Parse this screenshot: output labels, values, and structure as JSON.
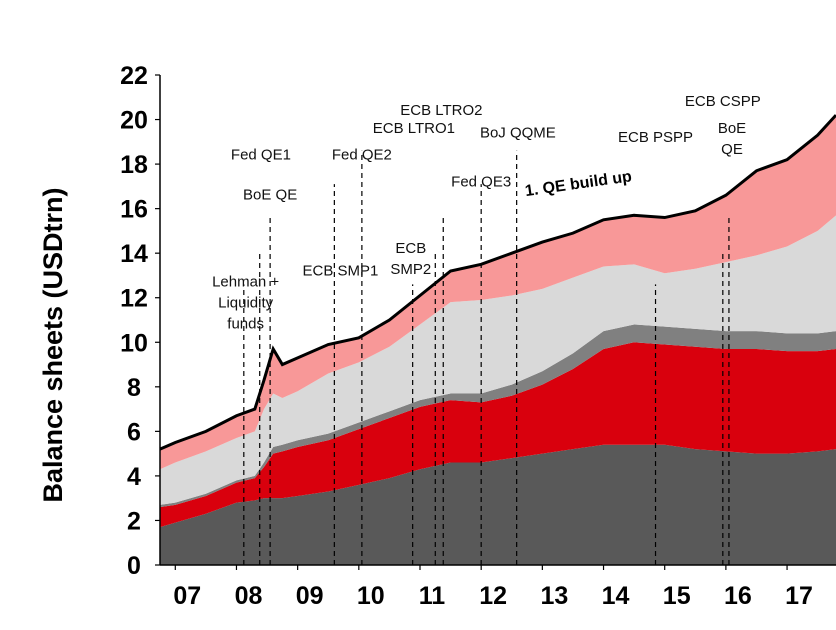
{
  "chart_data": {
    "type": "area",
    "title": "",
    "ylabel": "Balance sheets (USDtrn)",
    "xlabel": "",
    "ylim": [
      0,
      22
    ],
    "yticks": [
      0,
      2,
      4,
      6,
      8,
      10,
      12,
      14,
      16,
      18,
      20,
      22
    ],
    "xticks": [
      {
        "label": "07",
        "x": 2007.0
      },
      {
        "label": "08",
        "x": 2008.0
      },
      {
        "label": "09",
        "x": 2009.0
      },
      {
        "label": "10",
        "x": 2010.0
      },
      {
        "label": "11",
        "x": 2011.0
      },
      {
        "label": "12",
        "x": 2012.0
      },
      {
        "label": "13",
        "x": 2013.0
      },
      {
        "label": "14",
        "x": 2014.0
      },
      {
        "label": "15",
        "x": 2015.0
      },
      {
        "label": "16",
        "x": 2016.0
      },
      {
        "label": "17",
        "x": 2017.0
      }
    ],
    "xlim": [
      2006.75,
      2017.8
    ],
    "grid": false,
    "x": [
      2006.75,
      2007.0,
      2007.5,
      2008.0,
      2008.3,
      2008.45,
      2008.6,
      2008.75,
      2009.0,
      2009.5,
      2010.0,
      2010.5,
      2011.0,
      2011.5,
      2012.0,
      2012.5,
      2013.0,
      2013.5,
      2014.0,
      2014.5,
      2015.0,
      2015.5,
      2016.0,
      2016.5,
      2017.0,
      2017.5,
      2017.8
    ],
    "series": [
      {
        "color": "#595959",
        "values": [
          1.7,
          1.9,
          2.3,
          2.8,
          2.9,
          3.0,
          3.0,
          3.0,
          3.1,
          3.3,
          3.6,
          3.9,
          4.3,
          4.6,
          4.6,
          4.8,
          5.0,
          5.2,
          5.4,
          5.4,
          5.4,
          5.2,
          5.1,
          5.0,
          5.0,
          5.1,
          5.2
        ]
      },
      {
        "color": "#d9000d",
        "values": [
          0.9,
          0.8,
          0.8,
          0.9,
          1.0,
          1.4,
          2.0,
          2.1,
          2.2,
          2.3,
          2.5,
          2.7,
          2.8,
          2.8,
          2.7,
          2.8,
          3.1,
          3.6,
          4.3,
          4.6,
          4.5,
          4.6,
          4.6,
          4.7,
          4.6,
          4.5,
          4.5
        ]
      },
      {
        "color": "#808080",
        "values": [
          0.1,
          0.1,
          0.1,
          0.1,
          0.1,
          0.2,
          0.3,
          0.3,
          0.3,
          0.3,
          0.3,
          0.3,
          0.3,
          0.3,
          0.4,
          0.5,
          0.6,
          0.7,
          0.8,
          0.8,
          0.8,
          0.8,
          0.8,
          0.8,
          0.8,
          0.8,
          0.8
        ]
      },
      {
        "color": "#d9d9d9",
        "values": [
          1.6,
          1.8,
          1.9,
          1.9,
          2.0,
          2.4,
          2.4,
          2.1,
          2.2,
          2.7,
          2.7,
          2.9,
          3.4,
          4.1,
          4.2,
          4.0,
          3.7,
          3.4,
          2.9,
          2.7,
          2.4,
          2.7,
          3.1,
          3.4,
          3.9,
          4.6,
          5.2
        ]
      },
      {
        "color": "#f89898",
        "values": [
          0.9,
          0.9,
          0.9,
          1.0,
          1.0,
          1.3,
          2.0,
          1.5,
          1.5,
          1.3,
          1.1,
          1.2,
          1.3,
          1.4,
          1.6,
          1.9,
          2.1,
          2.0,
          2.1,
          2.2,
          2.5,
          2.6,
          3.0,
          3.8,
          3.9,
          4.3,
          4.5
        ]
      }
    ],
    "annotations": [
      {
        "text": [
          "Lehman +",
          "Liquidity",
          "funds"
        ],
        "x": 2008.15,
        "y": 12.5
      },
      {
        "text": [
          "Fed QE1"
        ],
        "x": 2008.4,
        "y": 18.2
      },
      {
        "text": [
          "BoE QE"
        ],
        "x": 2008.55,
        "y": 16.4
      },
      {
        "text": [
          "ECB SMP1"
        ],
        "x": 2009.7,
        "y": 13.0
      },
      {
        "text": [
          "Fed QE2"
        ],
        "x": 2010.05,
        "y": 18.2
      },
      {
        "text": [
          "ECB LTRO1"
        ],
        "x": 2010.9,
        "y": 19.4
      },
      {
        "text": [
          "ECB",
          "SMP2"
        ],
        "x": 2010.85,
        "y": 14.0
      },
      {
        "text": [
          "ECB LTRO2"
        ],
        "x": 2011.35,
        "y": 20.2
      },
      {
        "text": [
          "Fed QE3"
        ],
        "x": 2012.0,
        "y": 17.0
      },
      {
        "text": [
          "BoJ QQME"
        ],
        "x": 2012.6,
        "y": 19.2
      },
      {
        "text": [
          "ECB PSPP"
        ],
        "x": 2014.85,
        "y": 19.0
      },
      {
        "text": [
          "ECB CSPP"
        ],
        "x": 2015.95,
        "y": 20.6
      },
      {
        "text": [
          "BoE",
          "QE"
        ],
        "x": 2016.1,
        "y": 19.4
      }
    ],
    "event_lines": [
      2008.12,
      2008.38,
      2008.55,
      2009.6,
      2010.05,
      2010.88,
      2011.25,
      2011.38,
      2012.0,
      2012.58,
      2014.85,
      2015.95,
      2016.05
    ],
    "callout": {
      "text": "1. QE build up",
      "x": 2013.6,
      "y": 16.9,
      "rotate": -8
    }
  }
}
